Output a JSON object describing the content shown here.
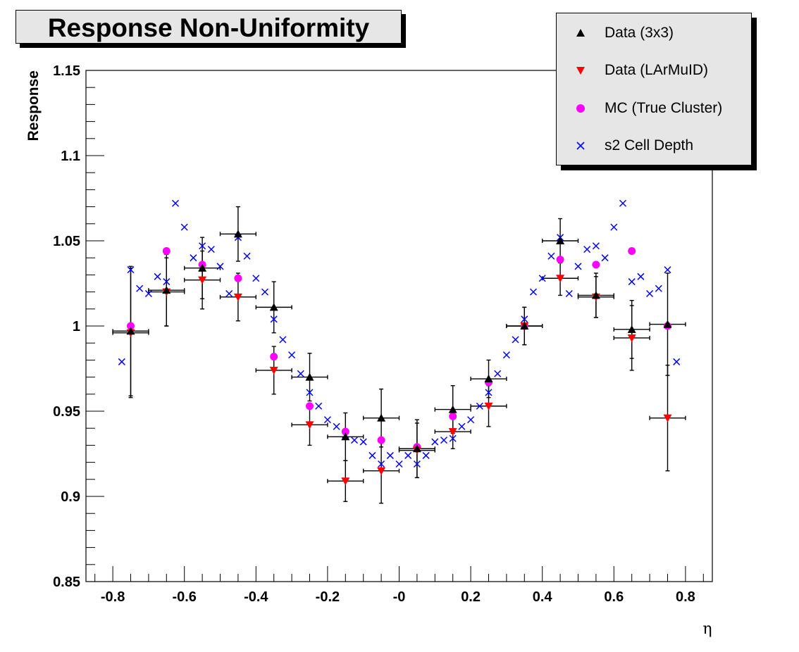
{
  "title": "Response Non-Uniformity",
  "legend": {
    "items": [
      {
        "label": "Data (3x3)",
        "marker": "triangle-up",
        "color": "#000000"
      },
      {
        "label": "Data (LArMuID)",
        "marker": "triangle-down",
        "color": "#ff0000"
      },
      {
        "label": "MC (True Cluster)",
        "marker": "circle",
        "color": "#ff00ff"
      },
      {
        "label": "s2 Cell Depth",
        "marker": "cross",
        "color": "#0000ff"
      }
    ]
  },
  "chart_data": {
    "type": "scatter",
    "title": "Response Non-Uniformity",
    "xlabel": "η",
    "ylabel": "Response",
    "xlim": [
      -0.875,
      0.875
    ],
    "ylim": [
      0.85,
      1.15
    ],
    "x_ticks": [
      -0.8,
      -0.6,
      -0.4,
      -0.2,
      0,
      0.2,
      0.4,
      0.6,
      0.8
    ],
    "x_tick_labels": [
      "-0.8",
      "-0.6",
      "-0.4",
      "-0.2",
      "-0",
      "0.2",
      "0.4",
      "0.6",
      "0.8"
    ],
    "y_ticks": [
      0.85,
      0.9,
      0.95,
      1.0,
      1.05,
      1.1,
      1.15
    ],
    "y_tick_labels": [
      "0.85",
      "0.9",
      "0.95",
      "1",
      "1.05",
      "1.1",
      "1.15"
    ],
    "grid": false,
    "legend_position": "top-right",
    "series": [
      {
        "name": "Data (3x3)",
        "marker": "triangle-up",
        "color": "#000000",
        "x": [
          -0.75,
          -0.65,
          -0.55,
          -0.45,
          -0.35,
          -0.25,
          -0.15,
          -0.05,
          0.05,
          0.15,
          0.25,
          0.35,
          0.45,
          0.55,
          0.65,
          0.75
        ],
        "y": [
          0.997,
          1.021,
          1.034,
          1.054,
          1.011,
          0.97,
          0.935,
          0.946,
          0.928,
          0.951,
          0.969,
          1.0,
          1.05,
          1.018,
          0.998,
          1.001
        ],
        "xerr": 0.05,
        "yerr": [
          0.038,
          0.021,
          0.018,
          0.016,
          0.015,
          0.014,
          0.014,
          0.017,
          0.017,
          0.014,
          0.011,
          0.011,
          0.013,
          0.013,
          0.017,
          0.03
        ]
      },
      {
        "name": "Data (LArMuID)",
        "marker": "triangle-down",
        "color": "#ff0000",
        "x": [
          -0.75,
          -0.65,
          -0.55,
          -0.45,
          -0.35,
          -0.25,
          -0.15,
          -0.05,
          0.05,
          0.15,
          0.25,
          0.35,
          0.45,
          0.55,
          0.65,
          0.75
        ],
        "y": [
          0.996,
          1.02,
          1.027,
          1.017,
          0.974,
          0.942,
          0.909,
          0.915,
          0.927,
          0.938,
          0.953,
          1.0,
          1.028,
          1.017,
          0.993,
          0.946
        ],
        "xerr": 0.05,
        "yerr": [
          0.038,
          0.02,
          0.017,
          0.014,
          0.014,
          0.012,
          0.012,
          0.019,
          0.016,
          0.01,
          0.012,
          0.011,
          0.01,
          0.012,
          0.019,
          0.031
        ]
      },
      {
        "name": "MC (True Cluster)",
        "marker": "circle",
        "color": "#ff00ff",
        "x": [
          -0.75,
          -0.65,
          -0.55,
          -0.45,
          -0.35,
          -0.25,
          -0.15,
          -0.05,
          0.05,
          0.15,
          0.25,
          0.35,
          0.45,
          0.55,
          0.65,
          0.75
        ],
        "y": [
          1.0,
          1.044,
          1.036,
          1.028,
          0.982,
          0.953,
          0.938,
          0.933,
          0.929,
          0.947,
          0.967,
          1.0,
          1.039,
          1.036,
          1.044,
          1.0
        ]
      },
      {
        "name": "s2 Cell Depth",
        "marker": "cross",
        "color": "#0000ff",
        "x": [
          -0.775,
          -0.75,
          -0.725,
          -0.7,
          -0.675,
          -0.65,
          -0.625,
          -0.6,
          -0.575,
          -0.55,
          -0.525,
          -0.5,
          -0.475,
          -0.45,
          -0.425,
          -0.4,
          -0.375,
          -0.35,
          -0.325,
          -0.3,
          -0.275,
          -0.25,
          -0.225,
          -0.2,
          -0.175,
          -0.15,
          -0.125,
          -0.1,
          -0.075,
          -0.05,
          -0.025,
          0.0,
          0.025,
          0.05,
          0.075,
          0.1,
          0.125,
          0.15,
          0.175,
          0.2,
          0.225,
          0.25,
          0.275,
          0.3,
          0.325,
          0.35,
          0.375,
          0.4,
          0.425,
          0.45,
          0.475,
          0.5,
          0.525,
          0.55,
          0.575,
          0.6,
          0.625,
          0.65,
          0.675,
          0.7,
          0.725,
          0.75,
          0.775
        ],
        "y": [
          0.979,
          1.033,
          1.022,
          1.019,
          1.029,
          1.026,
          1.072,
          1.058,
          1.04,
          1.047,
          1.045,
          1.035,
          1.019,
          1.052,
          1.041,
          1.028,
          1.02,
          1.004,
          0.992,
          0.983,
          0.972,
          0.961,
          0.953,
          0.945,
          0.941,
          0.936,
          0.933,
          0.932,
          0.924,
          0.919,
          0.924,
          0.919,
          0.924,
          0.919,
          0.924,
          0.932,
          0.933,
          0.934,
          0.941,
          0.945,
          0.953,
          0.961,
          0.972,
          0.983,
          0.992,
          1.004,
          1.02,
          1.028,
          1.041,
          1.052,
          1.019,
          1.035,
          1.045,
          1.047,
          1.04,
          1.058,
          1.072,
          1.026,
          1.029,
          1.019,
          1.022,
          1.033,
          0.979
        ]
      }
    ]
  }
}
